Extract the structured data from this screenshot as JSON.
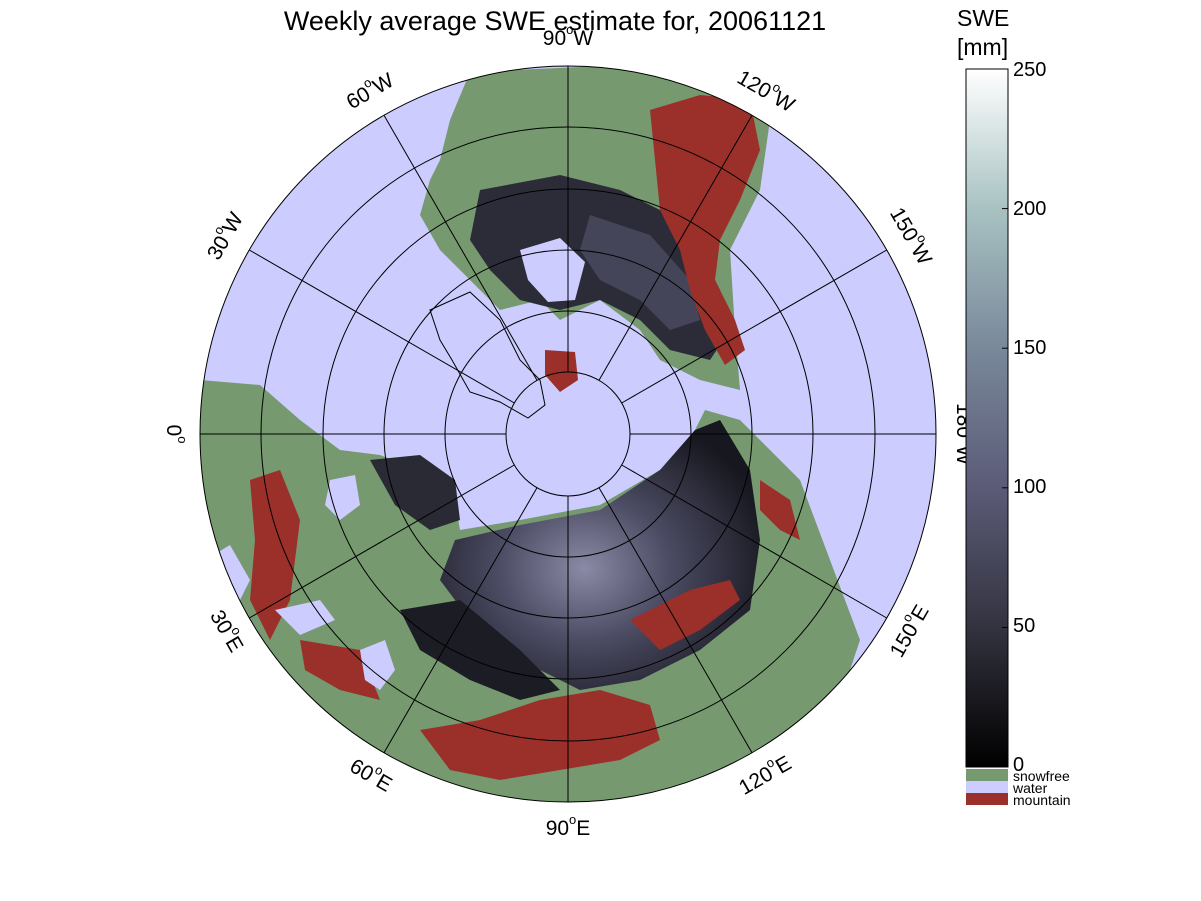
{
  "title": "Weekly average SWE estimate for, 20061121",
  "longitude_labels": [
    {
      "lon": "0",
      "text": "0"
    },
    {
      "lon": "30E",
      "text": "30",
      "suffix": "E"
    },
    {
      "lon": "60E",
      "text": "60",
      "suffix": "E"
    },
    {
      "lon": "90E",
      "text": "90",
      "suffix": "E"
    },
    {
      "lon": "120E",
      "text": "120",
      "suffix": "E"
    },
    {
      "lon": "150E",
      "text": "150",
      "suffix": "E"
    },
    {
      "lon": "180W",
      "text": "180",
      "suffix": "W"
    },
    {
      "lon": "150W",
      "text": "150",
      "suffix": "W"
    },
    {
      "lon": "120W",
      "text": "120",
      "suffix": "W"
    },
    {
      "lon": "90W",
      "text": "90",
      "suffix": "W"
    },
    {
      "lon": "60W",
      "text": "60",
      "suffix": "W"
    },
    {
      "lon": "30W",
      "text": "30",
      "suffix": "W"
    }
  ],
  "degree_symbol": "o",
  "colorbar": {
    "title_line1": "SWE",
    "title_line2": "[mm]",
    "ticks": [
      "0",
      "50",
      "100",
      "150",
      "200",
      "250"
    ],
    "range": [
      0,
      250
    ],
    "categories": [
      {
        "label": "snowfree",
        "color": "#76996f"
      },
      {
        "label": "water",
        "color": "#ccccff"
      },
      {
        "label": "mountain",
        "color": "#9b302b"
      }
    ]
  },
  "colors": {
    "water": "#ccccff",
    "snowfree": "#76996f",
    "mountain": "#9b302b",
    "snow_low": "#0d0d12",
    "snow_mid": "#5a5a78",
    "snow_high": "#fbfdfd"
  }
}
